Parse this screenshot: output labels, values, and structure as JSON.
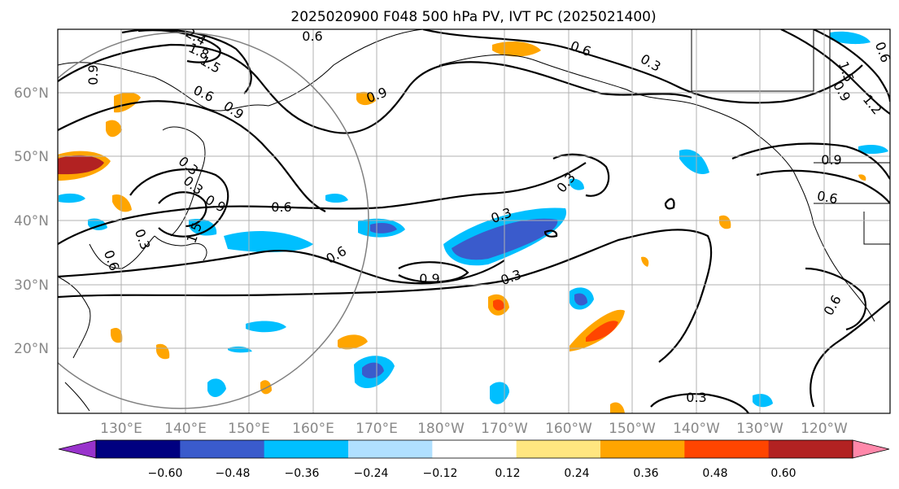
{
  "title": "2025020900 F048 500 hPa PV, IVT PC (2025021400)",
  "lon_labels": [
    "130°E",
    "140°E",
    "150°E",
    "160°E",
    "170°E",
    "180°W",
    "170°W",
    "160°W",
    "150°W",
    "140°W",
    "130°W",
    "120°W"
  ],
  "lat_labels": [
    "60°N",
    "50°N",
    "40°N",
    "30°N",
    "20°N"
  ],
  "contour_labels": [
    "0.6",
    "2.4",
    "1.8",
    "1.5",
    "0.9",
    "0.6",
    "0.9",
    "0.3",
    "0.9",
    "0.6",
    "0.9",
    "0.6",
    "0.3",
    "0.9",
    "1.2",
    "1.5",
    "0.6",
    "0.3",
    "0.9",
    "0.6",
    "0.3",
    "1.5",
    "0.6",
    "0.3",
    "0.6",
    "0.3",
    "0.9",
    "0.3",
    "0.6",
    "0.3"
  ],
  "colorbar": {
    "ticks": [
      "−0.60",
      "−0.48",
      "−0.36",
      "−0.24",
      "−0.12",
      "0.12",
      "0.24",
      "0.36",
      "0.48",
      "0.60"
    ],
    "colors": [
      "#9933cc",
      "#000080",
      "#3a5bcc",
      "#00bfff",
      "#b0e0ff",
      "#ffffff",
      "#ffe680",
      "#ffa500",
      "#ff4500",
      "#b22222",
      "#ff88aa"
    ]
  },
  "colors": {
    "pos_low": "#ffe680",
    "pos_mid": "#ffa500",
    "pos_high": "#ff4500",
    "pos_top": "#b22222",
    "neg_low": "#b0e0ff",
    "neg_mid": "#00bfff",
    "neg_high": "#3a5bcc",
    "neg_top": "#000080",
    "contour": "#000000",
    "circle": "#808080"
  }
}
